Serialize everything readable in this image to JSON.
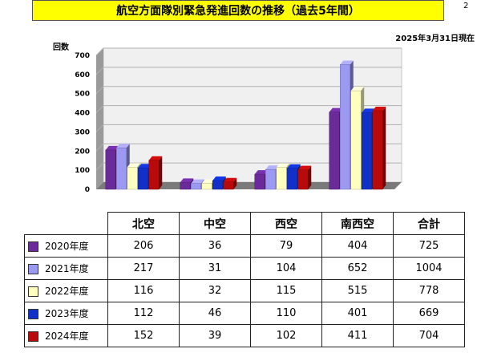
{
  "header": {
    "title": "航空方面隊別緊急発進回数の推移（過去5年間）",
    "page_number": "2",
    "as_of": "2025年3月31日現在"
  },
  "chart_data": {
    "type": "bar",
    "ylabel": "回数",
    "ylim": [
      0,
      700
    ],
    "yticks": [
      0,
      100,
      200,
      300,
      400,
      500,
      600,
      700
    ],
    "grid": true,
    "categories": [
      "北空",
      "中空",
      "西空",
      "南西空"
    ],
    "series": [
      {
        "name": "2020年度",
        "color": "#6a2a9a",
        "values": [
          206,
          36,
          79,
          404
        ]
      },
      {
        "name": "2021年度",
        "color": "#9b99f2",
        "values": [
          217,
          31,
          104,
          652
        ]
      },
      {
        "name": "2022年度",
        "color": "#ffffc0",
        "values": [
          116,
          32,
          115,
          515
        ]
      },
      {
        "name": "2023年度",
        "color": "#1030c8",
        "values": [
          112,
          46,
          110,
          401
        ]
      },
      {
        "name": "2024年度",
        "color": "#b80a0a",
        "values": [
          152,
          39,
          102,
          411
        ]
      }
    ]
  },
  "table": {
    "columns": [
      "北空",
      "中空",
      "西空",
      "南西空",
      "合計"
    ],
    "rows": [
      {
        "label": "2020年度",
        "color": "#6a2a9a",
        "values": [
          "206",
          "36",
          "79",
          "404",
          "725"
        ]
      },
      {
        "label": "2021年度",
        "color": "#9b99f2",
        "values": [
          "217",
          "31",
          "104",
          "652",
          "1004"
        ]
      },
      {
        "label": "2022年度",
        "color": "#ffffc0",
        "values": [
          "116",
          "32",
          "115",
          "515",
          "778"
        ]
      },
      {
        "label": "2023年度",
        "color": "#1030c8",
        "values": [
          "112",
          "46",
          "110",
          "401",
          "669"
        ]
      },
      {
        "label": "2024年度",
        "color": "#b80a0a",
        "values": [
          "152",
          "39",
          "102",
          "411",
          "704"
        ]
      }
    ]
  }
}
